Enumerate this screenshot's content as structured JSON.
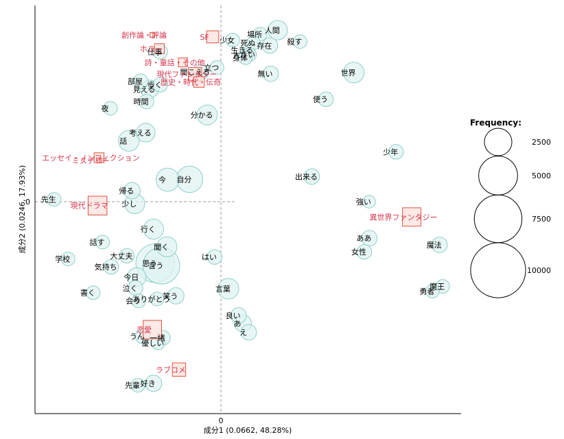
{
  "chart_data": {
    "type": "scatter",
    "title": "",
    "xlabel": "成分1 (0.0662, 48.28%)",
    "ylabel": "成分2 (0.0246, 17.93%)",
    "xlim": [
      -0.47,
      0.6
    ],
    "ylim": [
      -0.53,
      0.5
    ],
    "x_ticks": [
      0
    ],
    "y_ticks": [
      0
    ],
    "x_tick_labels": [
      "0"
    ],
    "y_tick_labels": [
      "0"
    ],
    "reference_lines": "dashed at 0",
    "grid": false,
    "legend": {
      "title": "Frequency:",
      "placement": "right",
      "sizes": [
        2500,
        5000,
        7500,
        10000
      ],
      "labels": [
        "2500",
        "5000",
        "7500",
        "10000"
      ]
    },
    "colors": {
      "bubble_fill": "#dff3f2",
      "bubble_stroke": "#8ccfc9",
      "category_fill": "#fde3de",
      "category_stroke": "#e0533f",
      "category_text": "#d6334b"
    },
    "words": [
      {
        "label": "人間",
        "x": 0.145,
        "y": 0.437,
        "freq": 1400
      },
      {
        "label": "場所",
        "x": 0.1,
        "y": 0.427,
        "freq": 700
      },
      {
        "label": "少女",
        "x": 0.03,
        "y": 0.412,
        "freq": 700
      },
      {
        "label": "死ぬ",
        "x": 0.083,
        "y": 0.405,
        "freq": 700
      },
      {
        "label": "存在",
        "x": 0.125,
        "y": 0.398,
        "freq": 900
      },
      {
        "label": "殺す",
        "x": 0.202,
        "y": 0.408,
        "freq": 700
      },
      {
        "label": "生きる",
        "x": 0.068,
        "y": 0.386,
        "freq": 800
      },
      {
        "label": "大きい",
        "x": 0.073,
        "y": 0.375,
        "freq": 700
      },
      {
        "label": "身体",
        "x": 0.063,
        "y": 0.367,
        "freq": 700
      },
      {
        "label": "立つ",
        "x": -0.01,
        "y": 0.342,
        "freq": 700
      },
      {
        "label": "無い",
        "x": 0.127,
        "y": 0.326,
        "freq": 900
      },
      {
        "label": "世界",
        "x": 0.339,
        "y": 0.329,
        "freq": 1600
      },
      {
        "label": "仕事",
        "x": -0.155,
        "y": 0.382,
        "freq": 800
      },
      {
        "label": "聞こえる",
        "x": -0.052,
        "y": 0.33,
        "freq": 900
      },
      {
        "label": "部屋",
        "x": -0.205,
        "y": 0.307,
        "freq": 800
      },
      {
        "label": "歩く",
        "x": -0.155,
        "y": 0.298,
        "freq": 800
      },
      {
        "label": "見える",
        "x": -0.182,
        "y": 0.287,
        "freq": 1200
      },
      {
        "label": "時間",
        "x": -0.19,
        "y": 0.255,
        "freq": 800
      },
      {
        "label": "夜",
        "x": -0.282,
        "y": 0.238,
        "freq": 700
      },
      {
        "label": "使う",
        "x": 0.268,
        "y": 0.261,
        "freq": 800
      },
      {
        "label": "分かる",
        "x": -0.035,
        "y": 0.221,
        "freq": 1500
      },
      {
        "label": "考える",
        "x": -0.192,
        "y": 0.176,
        "freq": 1300
      },
      {
        "label": "話",
        "x": -0.235,
        "y": 0.155,
        "freq": 1600
      },
      {
        "label": "少年",
        "x": 0.447,
        "y": 0.127,
        "freq": 800
      },
      {
        "label": "出来る",
        "x": 0.232,
        "y": 0.064,
        "freq": 900
      },
      {
        "label": "自分",
        "x": -0.08,
        "y": 0.057,
        "freq": 2600
      },
      {
        "label": "今",
        "x": -0.136,
        "y": 0.056,
        "freq": 2000
      },
      {
        "label": "帰る",
        "x": -0.227,
        "y": 0.028,
        "freq": 1000
      },
      {
        "label": "先生",
        "x": -0.426,
        "y": 0.006,
        "freq": 700
      },
      {
        "label": "少し",
        "x": -0.22,
        "y": -0.005,
        "freq": 1500
      },
      {
        "label": "強い",
        "x": 0.378,
        "y": 0.0,
        "freq": 600
      },
      {
        "label": "行く",
        "x": -0.172,
        "y": -0.07,
        "freq": 1500
      },
      {
        "label": "話す",
        "x": -0.302,
        "y": -0.103,
        "freq": 700
      },
      {
        "label": "ああ",
        "x": 0.379,
        "y": -0.093,
        "freq": 900
      },
      {
        "label": "魔法",
        "x": 0.558,
        "y": -0.11,
        "freq": 900
      },
      {
        "label": "聞く",
        "x": -0.138,
        "y": -0.115,
        "freq": 1500
      },
      {
        "label": "大丈夫",
        "x": -0.24,
        "y": -0.138,
        "freq": 800
      },
      {
        "label": "学校",
        "x": -0.39,
        "y": -0.146,
        "freq": 700
      },
      {
        "label": "女性",
        "x": 0.366,
        "y": -0.128,
        "freq": 800
      },
      {
        "label": "はい",
        "x": -0.016,
        "y": -0.141,
        "freq": 800
      },
      {
        "label": "思う",
        "x": -0.168,
        "y": -0.157,
        "freq": 5500
      },
      {
        "label": "言う",
        "x": -0.152,
        "y": -0.163,
        "freq": 5000
      },
      {
        "label": "気持ち",
        "x": -0.28,
        "y": -0.166,
        "freq": 800
      },
      {
        "label": "今日",
        "x": -0.215,
        "y": -0.192,
        "freq": 1300
      },
      {
        "label": "泣く",
        "x": -0.218,
        "y": -0.22,
        "freq": 800
      },
      {
        "label": "魔王",
        "x": 0.566,
        "y": -0.216,
        "freq": 700
      },
      {
        "label": "勇者",
        "x": 0.54,
        "y": -0.228,
        "freq": 700
      },
      {
        "label": "言葉",
        "x": 0.019,
        "y": -0.222,
        "freq": 1600
      },
      {
        "label": "書く",
        "x": -0.326,
        "y": -0.232,
        "freq": 700
      },
      {
        "label": "ありがとう",
        "x": -0.163,
        "y": -0.248,
        "freq": 700
      },
      {
        "label": "笑う",
        "x": -0.115,
        "y": -0.24,
        "freq": 1000
      },
      {
        "label": "会う",
        "x": -0.21,
        "y": -0.253,
        "freq": 700
      },
      {
        "label": "良い",
        "x": 0.045,
        "y": -0.29,
        "freq": 900
      },
      {
        "label": "あ",
        "x": 0.056,
        "y": -0.31,
        "freq": 1100
      },
      {
        "label": "え",
        "x": 0.071,
        "y": -0.333,
        "freq": 900
      },
      {
        "label": "うん",
        "x": -0.2,
        "y": -0.343,
        "freq": 800
      },
      {
        "label": "一緒",
        "x": -0.148,
        "y": -0.347,
        "freq": 800
      },
      {
        "label": "優しい",
        "x": -0.16,
        "y": -0.36,
        "freq": 700
      },
      {
        "label": "好き",
        "x": -0.172,
        "y": -0.463,
        "freq": 1000
      },
      {
        "label": "先輩",
        "x": -0.212,
        "y": -0.468,
        "freq": 700
      }
    ],
    "categories": [
      {
        "label": "創作論・評論",
        "x": -0.175,
        "y": 0.425,
        "size": 50
      },
      {
        "label": "ホラー",
        "x": -0.157,
        "y": 0.39,
        "size": 600
      },
      {
        "label": "SF",
        "x": -0.021,
        "y": 0.42,
        "size": 900
      },
      {
        "label": "詩・童話・その他",
        "x": -0.097,
        "y": 0.355,
        "size": 500
      },
      {
        "label": "現代ファンタジー",
        "x": -0.066,
        "y": 0.325,
        "size": 1100
      },
      {
        "label": "歴史・時代・伝奇",
        "x": -0.056,
        "y": 0.305,
        "size": 700
      },
      {
        "label": "エッセイ・ノンフィクション",
        "x": -0.311,
        "y": 0.112,
        "size": 600
      },
      {
        "label": "ミステリー",
        "x": -0.311,
        "y": 0.105,
        "size": 50
      },
      {
        "label": "現代ドラマ",
        "x": -0.315,
        "y": -0.01,
        "size": 2200
      },
      {
        "label": "異世界ファンタジー",
        "x": 0.487,
        "y": -0.039,
        "size": 2100
      },
      {
        "label": "恋愛",
        "x": -0.175,
        "y": -0.326,
        "size": 2100
      },
      {
        "label": "ラブコメ",
        "x": -0.107,
        "y": -0.428,
        "size": 1100
      }
    ]
  }
}
